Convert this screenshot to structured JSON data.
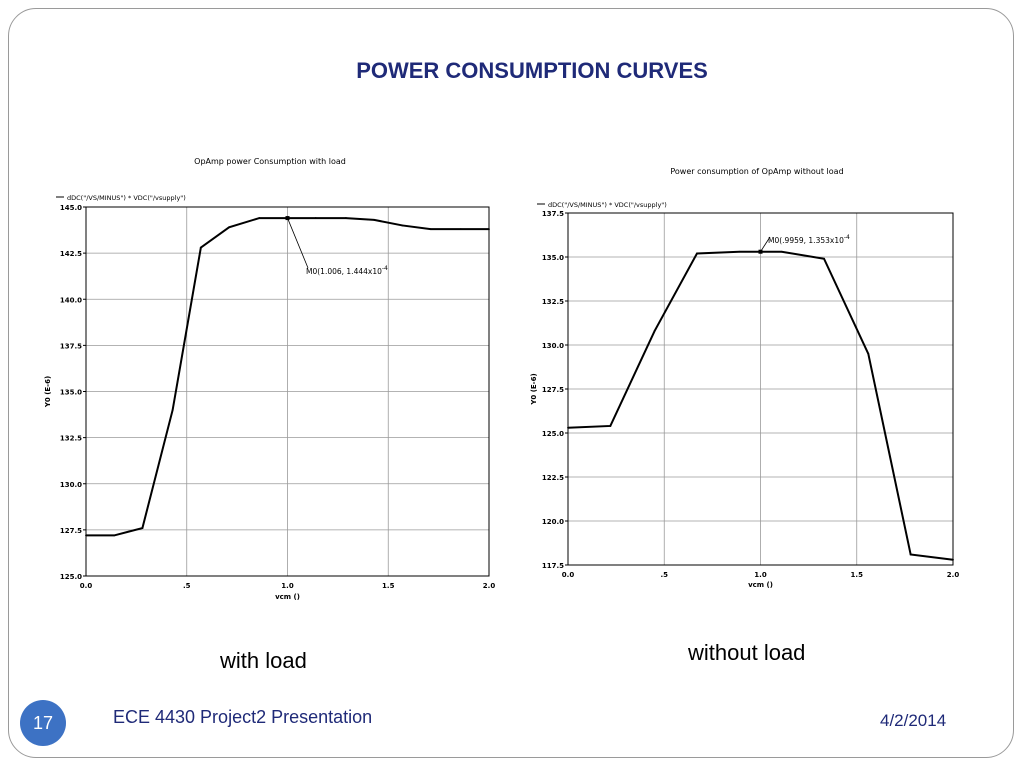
{
  "slide": {
    "title": "POWER CONSUMPTION CURVES",
    "page_number": "17",
    "footer": "ECE 4430 Project2 Presentation",
    "date": "4/2/2014"
  },
  "captions": {
    "left": "with load",
    "right": "without load"
  },
  "chart_data": [
    {
      "type": "line",
      "title": "OpAmp power Consumption with load",
      "legend": "dDC(\"/VS/MINUS\") * VDC(\"/vsupply\")",
      "xlabel": "vcm ()",
      "ylabel": "Y0 (E-6)",
      "xlim": [
        0.0,
        2.0
      ],
      "ylim": [
        125.0,
        145.0
      ],
      "xticks": [
        "0.0",
        ".5",
        "1.0",
        "1.5",
        "2.0"
      ],
      "yticks": [
        "125.0",
        "127.5",
        "130.0",
        "132.5",
        "135.0",
        "137.5",
        "140.0",
        "142.5",
        "145.0"
      ],
      "grid": true,
      "series": [
        {
          "x": [
            0.0,
            0.14,
            0.28,
            0.43,
            0.57,
            0.71,
            0.86,
            1.0,
            1.14,
            1.29,
            1.43,
            1.57,
            1.71,
            1.86,
            2.0
          ],
          "y": [
            127.2,
            127.2,
            127.6,
            134.0,
            142.8,
            143.9,
            144.4,
            144.4,
            144.4,
            144.4,
            144.3,
            144.0,
            143.8,
            143.8,
            143.8
          ]
        }
      ],
      "marker": {
        "x": 1.0,
        "y": 144.4,
        "label": "M0(1.006, 1.444x10",
        "exp": "-4"
      }
    },
    {
      "type": "line",
      "title": "Power consumption of OpAmp without load",
      "legend": "dDC(\"/VS/MINUS\") * VDC(\"/vsupply\")",
      "xlabel": "vcm ()",
      "ylabel": "Y0 (E-6)",
      "xlim": [
        0.0,
        2.0
      ],
      "ylim": [
        117.5,
        137.5
      ],
      "xticks": [
        "0.0",
        ".5",
        "1.0",
        "1.5",
        "2.0"
      ],
      "yticks": [
        "117.5",
        "120.0",
        "122.5",
        "125.0",
        "127.5",
        "130.0",
        "132.5",
        "135.0",
        "137.5"
      ],
      "grid": true,
      "series": [
        {
          "x": [
            0.0,
            0.22,
            0.45,
            0.67,
            0.89,
            1.0,
            1.11,
            1.33,
            1.56,
            1.78,
            2.0
          ],
          "y": [
            125.3,
            125.4,
            130.8,
            135.2,
            135.3,
            135.3,
            135.3,
            134.9,
            129.5,
            118.1,
            117.8
          ]
        }
      ],
      "marker": {
        "x": 1.0,
        "y": 135.3,
        "label": "M0(.9959, 1.353x10",
        "exp": "-4"
      }
    }
  ]
}
